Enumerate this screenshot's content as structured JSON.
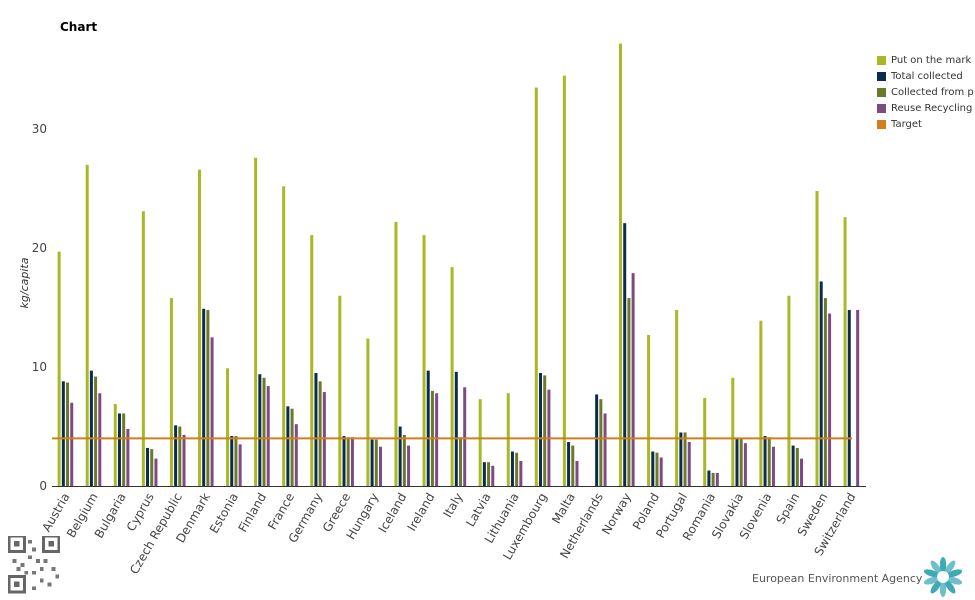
{
  "chart_data": {
    "type": "bar",
    "title": "Chart",
    "ylabel": "kg/capita",
    "xlabel": "",
    "ylim": [
      0,
      37.5
    ],
    "yticks": [
      0,
      10,
      20,
      30
    ],
    "legend_position": "top-right",
    "categories": [
      "Austria",
      "Belgium",
      "Bulgaria",
      "Cyprus",
      "Czech Republic",
      "Denmark",
      "Estonia",
      "Finland",
      "France",
      "Germany",
      "Greece",
      "Hungary",
      "Iceland",
      "Ireland",
      "Italy",
      "Latvia",
      "Lithuania",
      "Luxembourg",
      "Malta",
      "Netherlands",
      "Norway",
      "Poland",
      "Portugal",
      "Romania",
      "Slovakia",
      "Slovenia",
      "Spain",
      "Sweden",
      "Switzerland"
    ],
    "series": [
      {
        "name": "Put on the mark",
        "color": "#a8b826",
        "values": [
          19.7,
          27.0,
          6.9,
          23.1,
          15.8,
          26.6,
          9.9,
          27.6,
          25.2,
          21.1,
          16.0,
          12.4,
          22.2,
          21.1,
          18.4,
          7.3,
          7.8,
          33.5,
          34.5,
          null,
          37.2,
          12.7,
          14.8,
          7.4,
          9.1,
          13.9,
          16.0,
          24.8,
          22.6
        ]
      },
      {
        "name": "Total collected",
        "color": "#0b2c4a",
        "values": [
          8.8,
          9.7,
          6.1,
          3.2,
          5.1,
          14.9,
          4.2,
          9.4,
          6.7,
          9.5,
          4.2,
          3.9,
          5.0,
          9.7,
          9.6,
          2.0,
          2.9,
          9.5,
          3.7,
          7.7,
          22.1,
          2.9,
          4.5,
          1.3,
          4.0,
          4.2,
          3.4,
          17.2,
          14.8
        ]
      },
      {
        "name": "Collected from p",
        "color": "#6b7a2a",
        "values": [
          8.7,
          9.2,
          6.1,
          3.1,
          5.0,
          14.8,
          4.2,
          9.1,
          6.5,
          8.8,
          4.1,
          3.9,
          4.3,
          8.0,
          4.1,
          2.0,
          2.8,
          9.3,
          3.4,
          7.3,
          15.8,
          2.8,
          4.5,
          1.1,
          4.0,
          4.1,
          3.2,
          15.8,
          null
        ]
      },
      {
        "name": "Reuse Recycling",
        "color": "#7d4a82",
        "values": [
          7.0,
          7.8,
          4.8,
          2.3,
          4.3,
          12.5,
          3.5,
          8.4,
          5.2,
          7.9,
          4.1,
          3.3,
          3.4,
          7.8,
          8.3,
          1.7,
          2.1,
          8.1,
          2.1,
          6.1,
          17.9,
          2.4,
          3.7,
          1.1,
          3.6,
          3.3,
          2.3,
          14.5,
          14.8
        ]
      }
    ],
    "target": {
      "name": "Target",
      "color": "#d07e1e",
      "value": 4.0
    }
  },
  "footer": {
    "brand": "European Environment Agency"
  }
}
